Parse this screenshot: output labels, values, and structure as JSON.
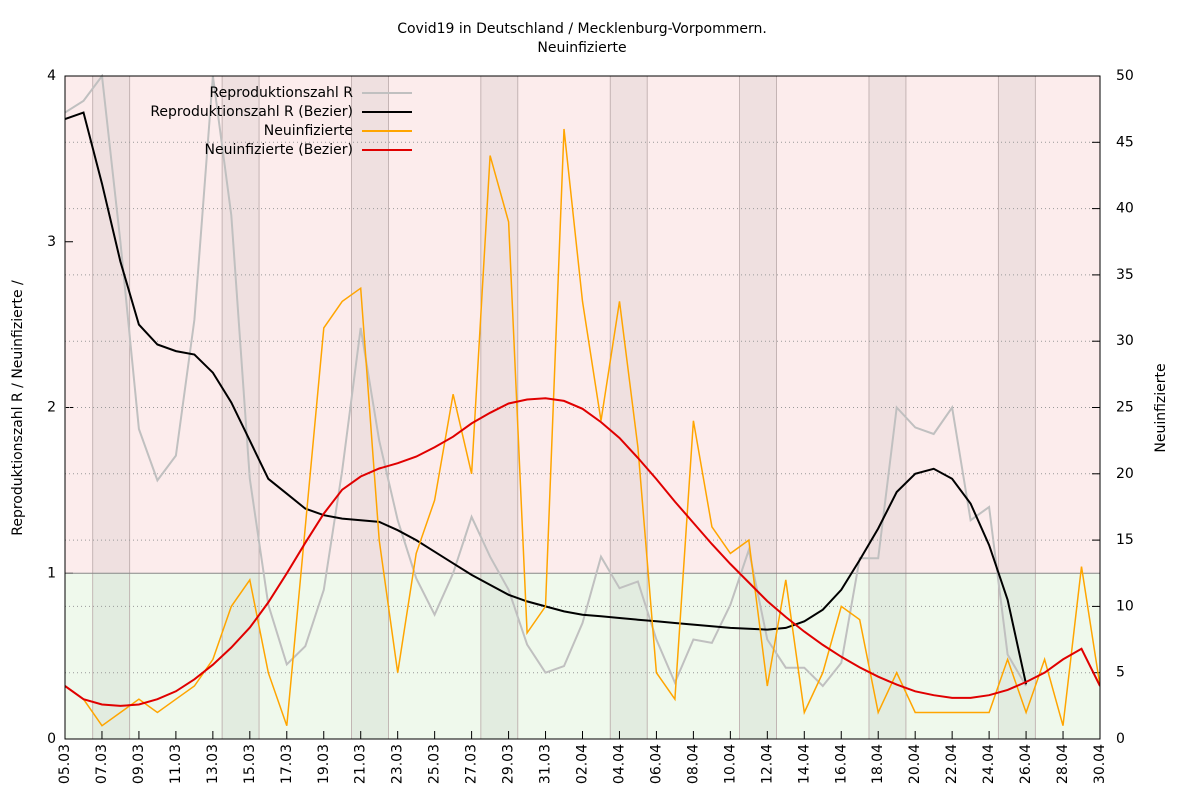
{
  "chart_data": {
    "type": "line",
    "title": "Covid19 in Deutschland / Mecklenburg-Vorpommern.",
    "subtitle": "Neuinfizierte",
    "y_label": "Reproduktionszahl R / Neuinfizierte /",
    "y2_label": "Neuinfizierte",
    "categories": [
      "05.03",
      null,
      "07.03",
      null,
      "09.03",
      null,
      "11.03",
      null,
      "13.03",
      null,
      "15.03",
      null,
      "17.03",
      null,
      "19.03",
      null,
      "21.03",
      null,
      "23.03",
      null,
      "25.03",
      null,
      "27.03",
      null,
      "29.03",
      null,
      "31.03",
      null,
      "02.04",
      null,
      "04.04",
      null,
      "06.04",
      null,
      "08.04",
      null,
      "10.04",
      null,
      "12.04",
      null,
      "14.04",
      null,
      "16.04",
      null,
      "18.04",
      null,
      "20.04",
      null,
      "22.04",
      null,
      "24.04",
      null,
      "26.04",
      null,
      "28.04",
      null,
      "30.04"
    ],
    "ylim": [
      0,
      4
    ],
    "yticks": [
      0,
      1,
      2,
      3,
      4
    ],
    "y2lim": [
      0,
      50
    ],
    "y2ticks": [
      0,
      5,
      10,
      15,
      20,
      25,
      30,
      35,
      40,
      45,
      50
    ],
    "threshold": 1,
    "grid": true,
    "legend": "upper left",
    "series": [
      {
        "name": "Reproduktionszahl R",
        "color": "#c0c0c0",
        "axis": "y",
        "values": [
          3.78,
          3.85,
          4.0,
          3.0,
          1.87,
          1.56,
          1.71,
          2.53,
          4.0,
          3.16,
          1.57,
          0.81,
          0.45,
          0.56,
          0.9,
          1.62,
          2.48,
          1.8,
          1.32,
          0.97,
          0.75,
          1.0,
          1.34,
          1.1,
          0.9,
          0.57,
          0.4,
          0.44,
          0.7,
          1.1,
          0.91,
          0.95,
          0.6,
          0.34,
          0.6,
          0.58,
          0.81,
          1.14,
          0.6,
          0.43,
          0.43,
          0.32,
          0.46,
          1.09,
          1.09,
          2.0,
          1.88,
          1.84,
          2.0,
          1.32,
          1.4,
          0.51,
          0.32,
          null,
          null,
          null,
          null
        ]
      },
      {
        "name": "Reproduktionszahl R (Bezier)",
        "color": "#000000",
        "axis": "y",
        "values": [
          3.74,
          3.78,
          3.35,
          2.88,
          2.5,
          2.38,
          2.34,
          2.32,
          2.21,
          2.03,
          1.8,
          1.57,
          1.48,
          1.39,
          1.35,
          1.33,
          1.32,
          1.31,
          1.26,
          1.2,
          1.13,
          1.06,
          0.99,
          0.93,
          0.87,
          0.83,
          0.8,
          0.77,
          0.75,
          0.74,
          0.73,
          0.72,
          0.71,
          0.7,
          0.69,
          0.68,
          0.67,
          0.665,
          0.66,
          0.67,
          0.71,
          0.78,
          0.9,
          1.08,
          1.27,
          1.49,
          1.6,
          1.63,
          1.57,
          1.42,
          1.17,
          0.84,
          0.33,
          null,
          null,
          null,
          null
        ]
      },
      {
        "name": "Neuinfizierte",
        "color": "#ffa500",
        "axis": "y2",
        "values": [
          4,
          3,
          1,
          2,
          3,
          2,
          3,
          4,
          6,
          10,
          12,
          5,
          1,
          16,
          31,
          33,
          34,
          15,
          5,
          14,
          18,
          26,
          20,
          44,
          39,
          8,
          10,
          46,
          33,
          24,
          33,
          22,
          5,
          3,
          24,
          16,
          14,
          15,
          4,
          12,
          2,
          5,
          10,
          9,
          2,
          5,
          2,
          2,
          2,
          2,
          2,
          6,
          2,
          6,
          1,
          13,
          4
        ]
      },
      {
        "name": "Neuinfizierte (Bezier)",
        "color": "#e00000",
        "axis": "y2",
        "values": [
          4,
          3,
          2.6,
          2.5,
          2.6,
          3,
          3.6,
          4.5,
          5.6,
          6.9,
          8.4,
          10.3,
          12.5,
          14.8,
          17,
          18.8,
          19.8,
          20.4,
          20.8,
          21.3,
          22,
          22.8,
          23.8,
          24.6,
          25.3,
          25.6,
          25.7,
          25.5,
          24.9,
          23.9,
          22.7,
          21.2,
          19.6,
          17.9,
          16.3,
          14.7,
          13.2,
          11.8,
          10.4,
          9.2,
          8.1,
          7.1,
          6.2,
          5.4,
          4.7,
          4.1,
          3.6,
          3.3,
          3.1,
          3.1,
          3.3,
          3.7,
          4.3,
          5,
          6,
          6.8,
          4
        ]
      }
    ]
  }
}
